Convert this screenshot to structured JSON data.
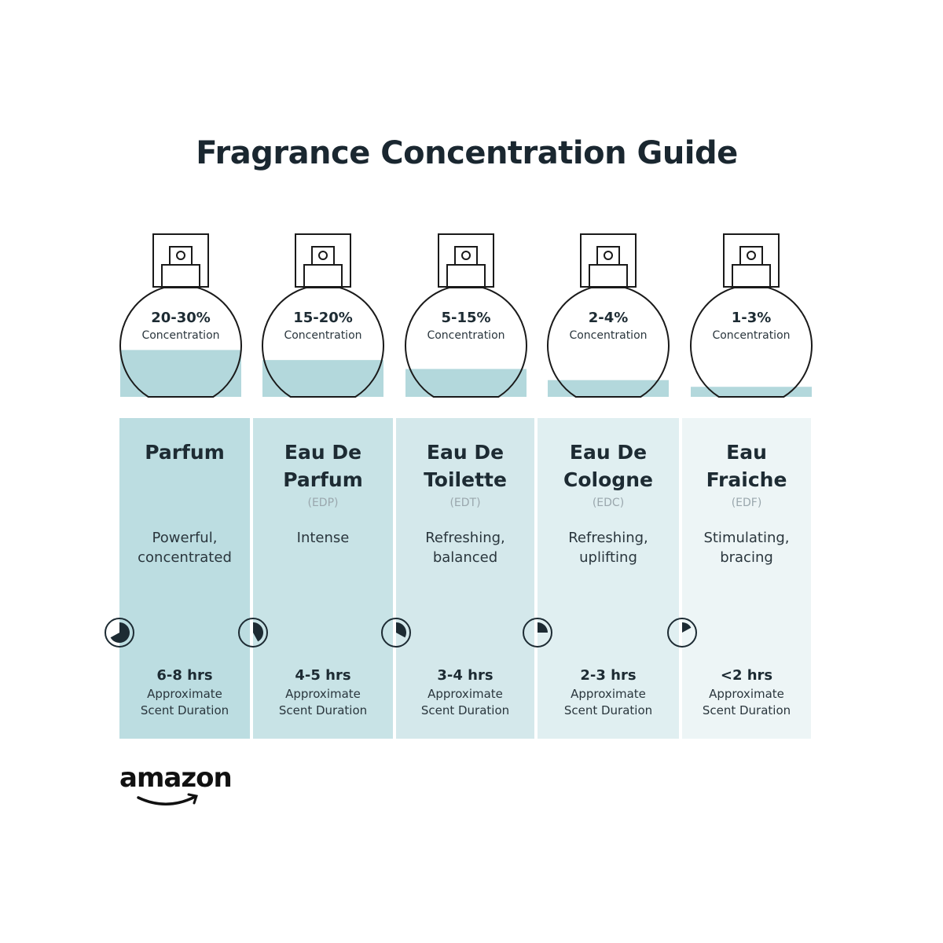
{
  "title": "Fragrance Concentration Guide",
  "colors": {
    "liquid": "#b3d8dc",
    "outline": "#1a1a1a",
    "column_backgrounds": [
      "#bcdde1",
      "#c8e3e6",
      "#d4e8eb",
      "#e0eff1",
      "#edf5f6"
    ]
  },
  "types": [
    {
      "concentration": "20-30%",
      "concentration_label": "Concentration",
      "fill_level": 0.42,
      "name_lines": [
        "Parfum",
        ""
      ],
      "abbr": "",
      "desc_lines": [
        "Powerful,",
        "concentrated"
      ],
      "duration": "6-8 hrs",
      "duration_fraction": 0.67,
      "sub_lines": [
        "Approximate",
        "Scent Duration"
      ],
      "clock_icon": "clock-pie-icon"
    },
    {
      "concentration": "15-20%",
      "concentration_label": "Concentration",
      "fill_level": 0.33,
      "name_lines": [
        "Eau De",
        "Parfum"
      ],
      "abbr": "(EDP)",
      "desc_lines": [
        "Intense",
        ""
      ],
      "duration": "4-5 hrs",
      "duration_fraction": 0.42,
      "sub_lines": [
        "Approximate",
        "Scent Duration"
      ],
      "clock_icon": "clock-pie-icon"
    },
    {
      "concentration": "5-15%",
      "concentration_label": "Concentration",
      "fill_level": 0.25,
      "name_lines": [
        "Eau De",
        "Toilette"
      ],
      "abbr": "(EDT)",
      "desc_lines": [
        "Refreshing,",
        "balanced"
      ],
      "duration": "3-4 hrs",
      "duration_fraction": 0.33,
      "sub_lines": [
        "Approximate",
        "Scent Duration"
      ],
      "clock_icon": "clock-pie-icon"
    },
    {
      "concentration": "2-4%",
      "concentration_label": "Concentration",
      "fill_level": 0.15,
      "name_lines": [
        "Eau De",
        "Cologne"
      ],
      "abbr": "(EDC)",
      "desc_lines": [
        "Refreshing,",
        "uplifting"
      ],
      "duration": "2-3 hrs",
      "duration_fraction": 0.25,
      "sub_lines": [
        "Approximate",
        "Scent Duration"
      ],
      "clock_icon": "clock-pie-icon"
    },
    {
      "concentration": "1-3%",
      "concentration_label": "Concentration",
      "fill_level": 0.09,
      "name_lines": [
        "Eau",
        "Fraiche"
      ],
      "abbr": "(EDF)",
      "desc_lines": [
        "Stimulating,",
        "bracing"
      ],
      "duration": "<2 hrs",
      "duration_fraction": 0.17,
      "sub_lines": [
        "Approximate",
        "Scent Duration"
      ],
      "clock_icon": "clock-pie-icon"
    }
  ],
  "logo": {
    "text": "amazon"
  }
}
